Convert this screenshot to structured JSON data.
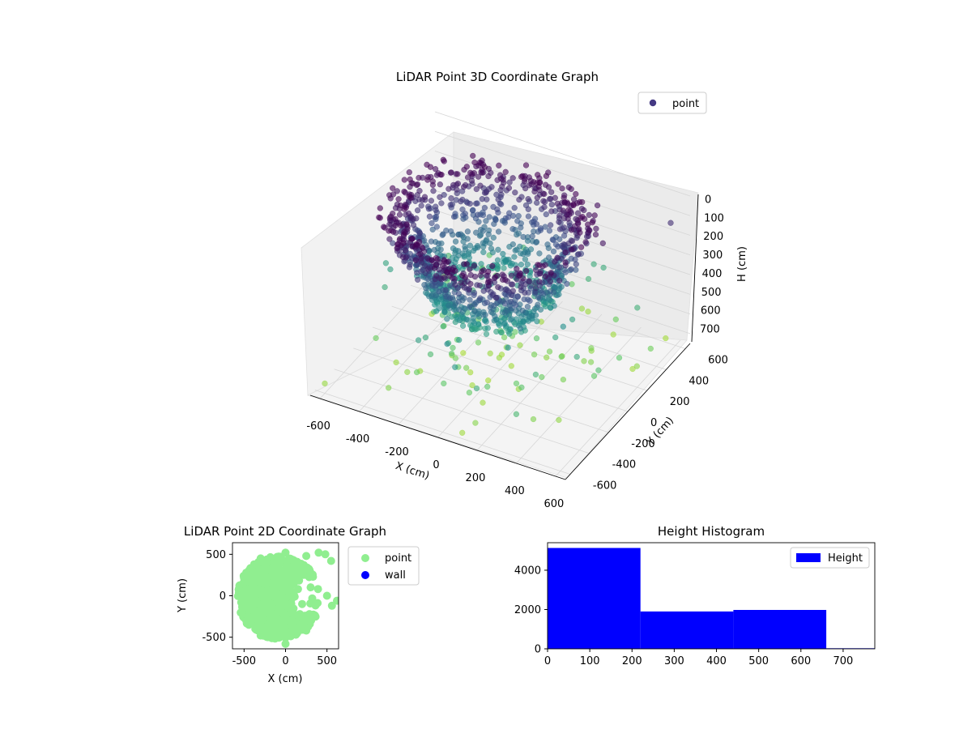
{
  "chart_data": [
    {
      "type": "scatter",
      "projection": "3d",
      "title": "LiDAR Point 3D Coordinate Graph",
      "xlabel": "X (cm)",
      "ylabel": "Y (cm)",
      "zlabel": "H (cm)",
      "xlim": [
        -650,
        650
      ],
      "ylim": [
        -650,
        650
      ],
      "zlim": [
        750,
        0
      ],
      "x_ticks": [
        "-600",
        "-400",
        "-200",
        "0",
        "200",
        "400",
        "600"
      ],
      "y_ticks": [
        "-600",
        "-400",
        "-200",
        "0",
        "200",
        "400",
        "600"
      ],
      "z_ticks": [
        "0",
        "100",
        "200",
        "300",
        "400",
        "500",
        "600",
        "700"
      ],
      "grid": true,
      "legend": {
        "position": "top-right",
        "entries": [
          "point"
        ]
      },
      "series": [
        {
          "name": "point",
          "colormap": "viridis",
          "marker_color": "#443983",
          "summary": "Dense dome-shaped cluster of roughly 10,000 points, radius about 500 cm around the origin, heights 0-450 cm; sparse outlier points scattered down to about 750 cm",
          "sample_points": [
            {
              "x": -500,
              "y": 100,
              "h": 20
            },
            {
              "x": -300,
              "y": 400,
              "h": 10
            },
            {
              "x": 0,
              "y": 500,
              "h": 15
            },
            {
              "x": 300,
              "y": 400,
              "h": 30
            },
            {
              "x": 450,
              "y": 150,
              "h": 40
            },
            {
              "x": 400,
              "y": -200,
              "h": 60
            },
            {
              "x": 200,
              "y": -450,
              "h": 80
            },
            {
              "x": -200,
              "y": -450,
              "h": 120
            },
            {
              "x": -450,
              "y": -200,
              "h": 150
            },
            {
              "x": -350,
              "y": 250,
              "h": 220
            },
            {
              "x": 100,
              "y": 300,
              "h": 260
            },
            {
              "x": 250,
              "y": -300,
              "h": 300
            },
            {
              "x": -100,
              "y": -350,
              "h": 340
            },
            {
              "x": -400,
              "y": -50,
              "h": 380
            },
            {
              "x": 0,
              "y": 0,
              "h": 420
            },
            {
              "x": 150,
              "y": 150,
              "h": 450
            },
            {
              "x": 600,
              "y": 550,
              "h": 100
            },
            {
              "x": 550,
              "y": -100,
              "h": 520
            },
            {
              "x": 620,
              "y": 300,
              "h": 600
            },
            {
              "x": -600,
              "y": -600,
              "h": 700
            },
            {
              "x": -300,
              "y": -550,
              "h": 650
            },
            {
              "x": 100,
              "y": -600,
              "h": 720
            },
            {
              "x": 400,
              "y": -650,
              "h": 500
            },
            {
              "x": 550,
              "y": 600,
              "h": 730
            }
          ]
        }
      ]
    },
    {
      "type": "scatter",
      "title": "LiDAR Point 2D Coordinate Graph",
      "xlabel": "X (cm)",
      "ylabel": "Y (cm)",
      "xlim": [
        -640,
        640
      ],
      "ylim": [
        -640,
        640
      ],
      "x_ticks": [
        "-500",
        "0",
        "500"
      ],
      "y_ticks": [
        "-500",
        "0",
        "500"
      ],
      "grid": false,
      "legend": {
        "position": "outside-right",
        "entries": [
          "point",
          "wall"
        ]
      },
      "series": [
        {
          "name": "point",
          "color": "#90ee90",
          "summary": "Filled disc of points, radius about 500 cm centered near (-80, -20), with a notch open toward +X",
          "sample_points": [
            {
              "x": -500,
              "y": 0
            },
            {
              "x": -450,
              "y": 250
            },
            {
              "x": -300,
              "y": 450
            },
            {
              "x": 0,
              "y": 520
            },
            {
              "x": 250,
              "y": 480
            },
            {
              "x": 400,
              "y": 520
            },
            {
              "x": 480,
              "y": 500
            },
            {
              "x": 550,
              "y": 420
            },
            {
              "x": 300,
              "y": 250
            },
            {
              "x": 150,
              "y": 80
            },
            {
              "x": 200,
              "y": -100
            },
            {
              "x": 330,
              "y": -250
            },
            {
              "x": 250,
              "y": -420
            },
            {
              "x": 0,
              "y": -580
            },
            {
              "x": -300,
              "y": -480
            },
            {
              "x": -450,
              "y": -250
            },
            {
              "x": 500,
              "y": 0
            },
            {
              "x": 620,
              "y": -60
            },
            {
              "x": 560,
              "y": -120
            }
          ]
        },
        {
          "name": "wall",
          "color": "#0000ff",
          "sample_points": []
        }
      ]
    },
    {
      "type": "bar",
      "subtype": "histogram",
      "title": "Height Histogram",
      "xlabel": "",
      "ylabel": "",
      "xlim": [
        0,
        775
      ],
      "ylim": [
        0,
        5400
      ],
      "x_ticks": [
        "0",
        "100",
        "200",
        "300",
        "400",
        "500",
        "600",
        "700"
      ],
      "y_ticks": [
        "0",
        "2000",
        "4000"
      ],
      "grid": false,
      "legend": {
        "position": "top-right",
        "entries": [
          "Height"
        ]
      },
      "series": [
        {
          "name": "Height",
          "color": "#0000ff",
          "bins": [
            {
              "start": 0,
              "end": 220,
              "count": 5130
            },
            {
              "start": 220,
              "end": 440,
              "count": 1900
            },
            {
              "start": 440,
              "end": 660,
              "count": 1980
            },
            {
              "start": 660,
              "end": 880,
              "count": 30
            }
          ]
        }
      ]
    }
  ]
}
